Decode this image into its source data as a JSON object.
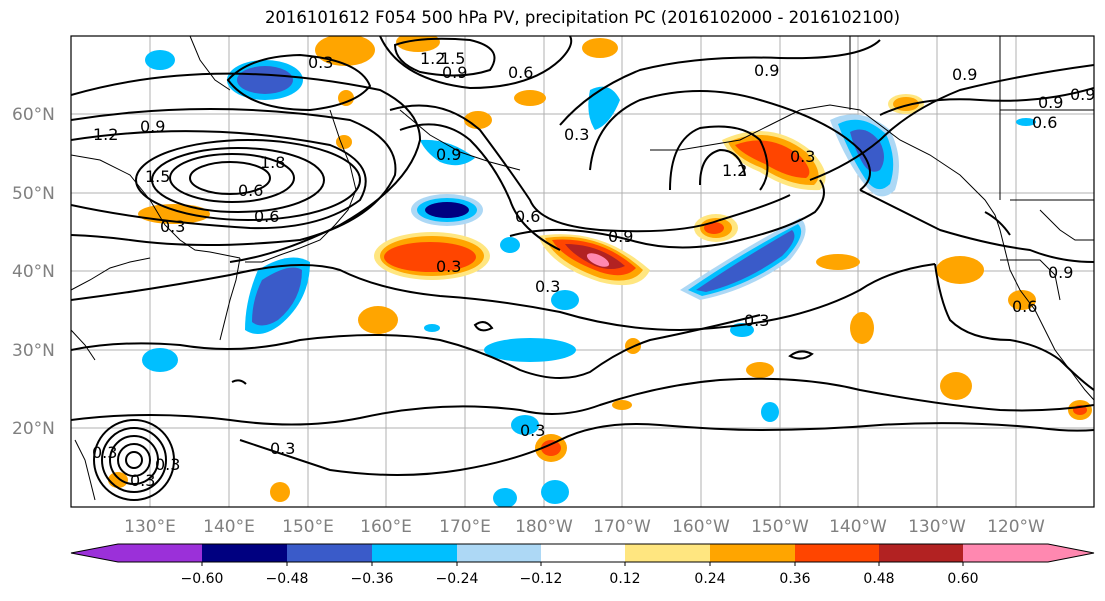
{
  "title": "2016101612 F054 500 hPa PV, precipitation PC (2016102000 - 2016102100)",
  "map": {
    "lat_labels": [
      "60°N",
      "50°N",
      "40°N",
      "30°N",
      "20°N"
    ],
    "lon_labels": [
      "130°E",
      "140°E",
      "150°E",
      "160°E",
      "170°E",
      "180°W",
      "170°W",
      "160°W",
      "150°W",
      "140°W",
      "130°W",
      "120°W"
    ],
    "contour_labels": [
      "0.3",
      "1.5",
      "1.2",
      "0.9",
      "0.6",
      "0.9",
      "0.6",
      "1.2",
      "0.9",
      "1.5",
      "1.8",
      "0.6",
      "0.3",
      "0.9",
      "0.9",
      "0.3",
      "0.9",
      "1.2",
      "0.3",
      "0.6",
      "0.9",
      "0.3",
      "0.3",
      "0.3",
      "0.3",
      "0.9",
      "0.3",
      "0.6",
      "0.6",
      "0.9",
      "0.3",
      "0.3",
      "0.3"
    ],
    "colors": {
      "land": "#ffffff",
      "grid": "#b0b0b0",
      "contour": "#000000"
    }
  },
  "colorbar": {
    "ticks": [
      "−0.60",
      "−0.48",
      "−0.36",
      "−0.24",
      "−0.12",
      "0.12",
      "0.24",
      "0.36",
      "0.48",
      "0.60"
    ],
    "colors": [
      "#9b30d9",
      "#000080",
      "#3a5bc9",
      "#00bfff",
      "#add8f5",
      "#ffffff",
      "#ffe680",
      "#ffa500",
      "#ff4500",
      "#b22222",
      "#ff88b0"
    ]
  }
}
